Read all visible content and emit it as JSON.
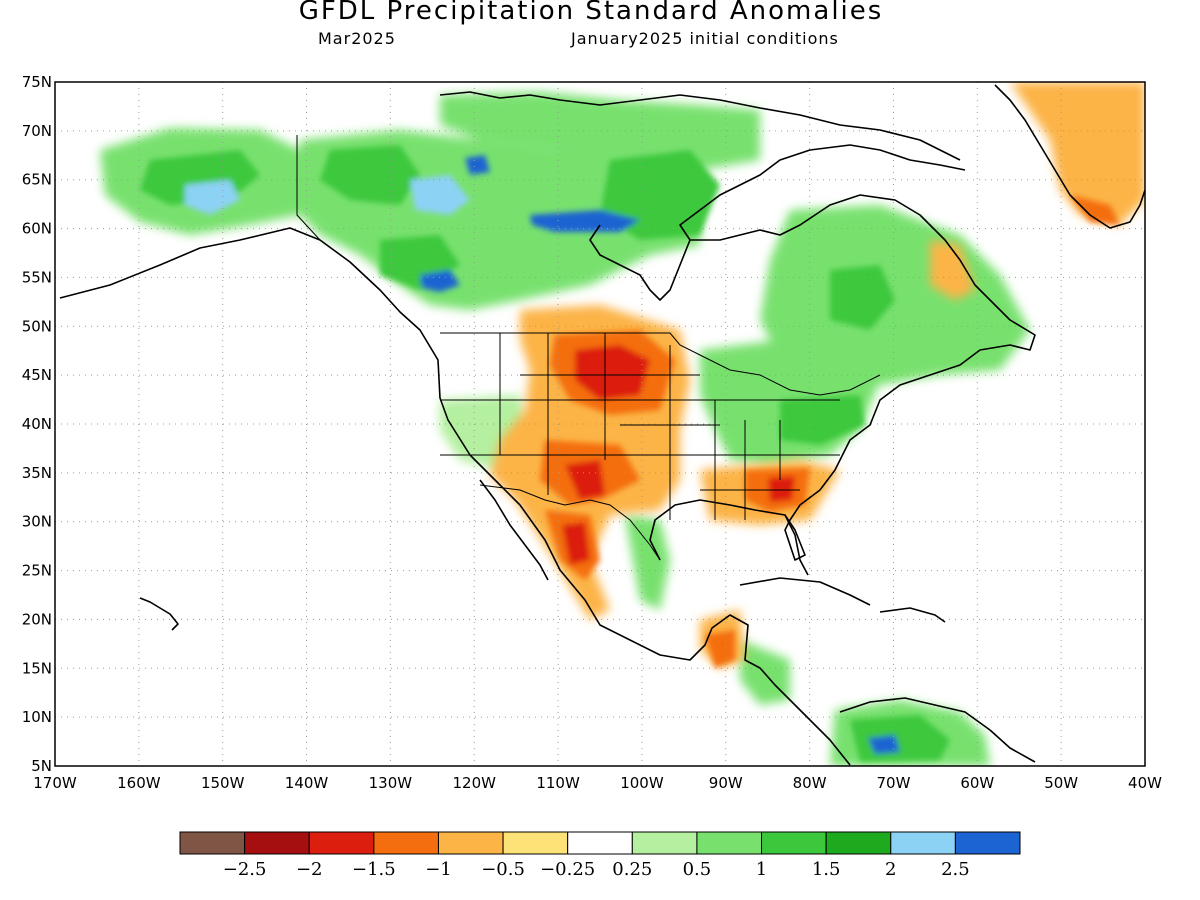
{
  "title": "GFDL Precipitation Standard Anomalies",
  "subtitle_left": "Mar2025",
  "subtitle_right": "January2025 initial conditions",
  "axes": {
    "lat_labels": [
      "75N",
      "70N",
      "65N",
      "60N",
      "55N",
      "50N",
      "45N",
      "40N",
      "35N",
      "30N",
      "25N",
      "20N",
      "15N",
      "10N",
      "5N"
    ],
    "lon_labels": [
      "170W",
      "160W",
      "150W",
      "140W",
      "130W",
      "120W",
      "110W",
      "100W",
      "90W",
      "80W",
      "70W",
      "60W",
      "50W",
      "40W"
    ],
    "lat_range": [
      5,
      75
    ],
    "lon_range": [
      -170,
      -40
    ],
    "grid": "dotted"
  },
  "colorbar": {
    "colors": [
      "#7f5545",
      "#a50f0f",
      "#dc1e0f",
      "#f46e0f",
      "#fcb446",
      "#fde278",
      "#ffffff",
      "#b4f0a0",
      "#78e16e",
      "#3cc83c",
      "#1eaa1e",
      "#8cd2f5",
      "#1c64d2"
    ],
    "labels": [
      "−2.5",
      "−2",
      "−1.5",
      "−1",
      "−0.5",
      "−0.25",
      "0.25",
      "0.5",
      "1",
      "1.5",
      "2",
      "2.5"
    ]
  },
  "anomaly_regions": [
    {
      "region": "Northern Plains (Dakotas, Montana)",
      "category": "-1.5 to -2"
    },
    {
      "region": "Southern Rockies / New Mexico",
      "category": "-1.5 to -2"
    },
    {
      "region": "Northern Mexico (Chihuahua/Sonora)",
      "category": "-1.5 to -2"
    },
    {
      "region": "Georgia / South Carolina",
      "category": "-1.5 to -2"
    },
    {
      "region": "Yucatan / Guatemala",
      "category": "-1.5"
    },
    {
      "region": "Greenland south",
      "category": "-0.5 to -1.5"
    },
    {
      "region": "Northwest Canada",
      "category": "1 to 2.5"
    },
    {
      "region": "Hudson Bay west / Nunavut",
      "category": "2 to 2.5"
    },
    {
      "region": "Ohio Valley / Northeast US",
      "category": "0.5 to 1.5"
    },
    {
      "region": "Quebec / Labrador",
      "category": "1 to 2"
    },
    {
      "region": "Northern South America",
      "category": "1 to 2.5"
    }
  ]
}
